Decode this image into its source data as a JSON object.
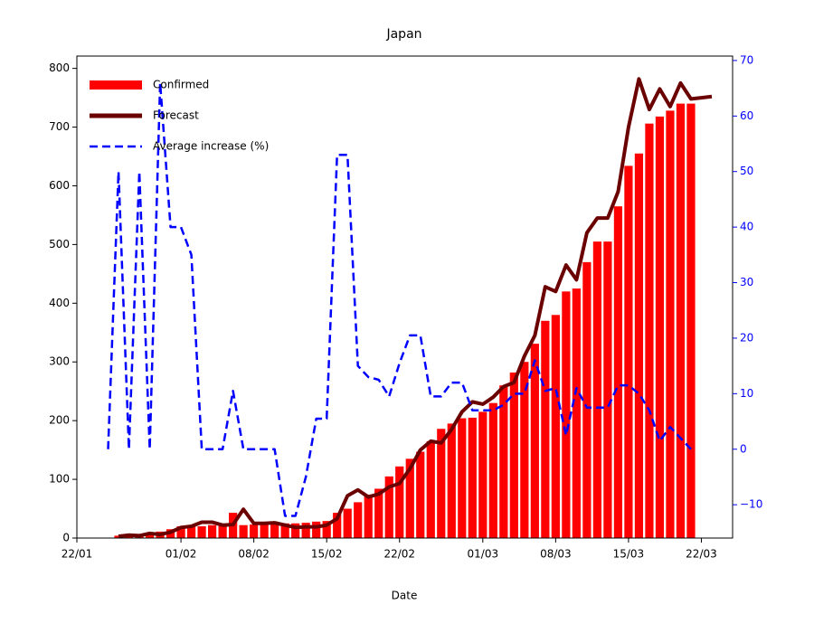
{
  "chart_data": {
    "type": "bar_line",
    "title": "Japan",
    "x_label": "Date",
    "x": [
      3,
      4,
      5,
      6,
      7,
      8,
      9,
      10,
      11,
      12,
      13,
      14,
      15,
      16,
      17,
      18,
      19,
      20,
      21,
      22,
      23,
      24,
      25,
      26,
      27,
      28,
      29,
      30,
      31,
      32,
      33,
      34,
      35,
      36,
      37,
      38,
      39,
      40,
      41,
      42,
      43,
      44,
      45,
      46,
      47,
      48,
      49,
      50,
      51,
      52,
      53,
      54,
      55,
      56,
      57,
      58,
      59,
      60,
      61
    ],
    "xlim": [
      0,
      63
    ],
    "xticks": [
      {
        "value": 0,
        "label": "22/01"
      },
      {
        "value": 10,
        "label": "01/02"
      },
      {
        "value": 17,
        "label": "08/02"
      },
      {
        "value": 24,
        "label": "15/02"
      },
      {
        "value": 31,
        "label": "22/02"
      },
      {
        "value": 39,
        "label": "01/03"
      },
      {
        "value": 46,
        "label": "08/03"
      },
      {
        "value": 53,
        "label": "15/03"
      },
      {
        "value": 60,
        "label": "22/03"
      }
    ],
    "ylim": [
      0,
      821
    ],
    "yticks": [
      0,
      100,
      200,
      300,
      400,
      500,
      600,
      700,
      800
    ],
    "y2lim": [
      -16,
      70.8
    ],
    "y2ticks": [
      {
        "value": -10,
        "label": "−10"
      },
      0,
      10,
      20,
      30,
      40,
      50,
      60,
      70
    ],
    "legend": "upper left",
    "series": [
      {
        "name": "Confirmed",
        "kind": "bar",
        "color": "#ff0000",
        "values": [
          null,
          4,
          4,
          7,
          7,
          11,
          15,
          20,
          20,
          20,
          22,
          22,
          43,
          22,
          23,
          24,
          25,
          25,
          25,
          26,
          28,
          29,
          43,
          50,
          61,
          74,
          84,
          105,
          122,
          135,
          147,
          165,
          186,
          195,
          204,
          205,
          215,
          230,
          260,
          282,
          300,
          331,
          370,
          380,
          420,
          425,
          470,
          505,
          505,
          565,
          634,
          655,
          706,
          718,
          728,
          740,
          740,
          null,
          null
        ]
      },
      {
        "name": "Forecast",
        "kind": "line",
        "color": "#6b0000",
        "values": [
          null,
          3,
          5,
          4,
          8,
          6,
          10,
          18,
          20,
          27,
          27,
          22,
          23,
          49,
          25,
          25,
          26,
          22,
          18,
          19,
          19,
          22,
          33,
          72,
          82,
          70,
          75,
          87,
          93,
          118,
          150,
          165,
          162,
          185,
          215,
          232,
          228,
          240,
          258,
          265,
          310,
          345,
          428,
          420,
          465,
          440,
          520,
          545,
          545,
          590,
          700,
          782,
          730,
          765,
          735,
          775,
          748,
          750,
          752
        ]
      },
      {
        "name": "Average increase (%)",
        "kind": "dashed",
        "axis": "y2",
        "color": "#0000ff",
        "values": [
          0,
          50,
          0,
          50,
          0,
          66,
          40,
          40,
          35,
          0,
          0,
          0,
          10.5,
          0,
          0,
          0,
          0,
          -12,
          -12,
          -5,
          5.5,
          5.5,
          53,
          53,
          15,
          13,
          12.5,
          9.5,
          15.5,
          20.5,
          20.5,
          9.5,
          9.5,
          12,
          12,
          7,
          7,
          7,
          8,
          10,
          10,
          16,
          10.5,
          11,
          2.5,
          11,
          7.5,
          7.5,
          7.5,
          11.5,
          11.5,
          10,
          7,
          1.5,
          4,
          2,
          0,
          null,
          null
        ]
      }
    ]
  }
}
